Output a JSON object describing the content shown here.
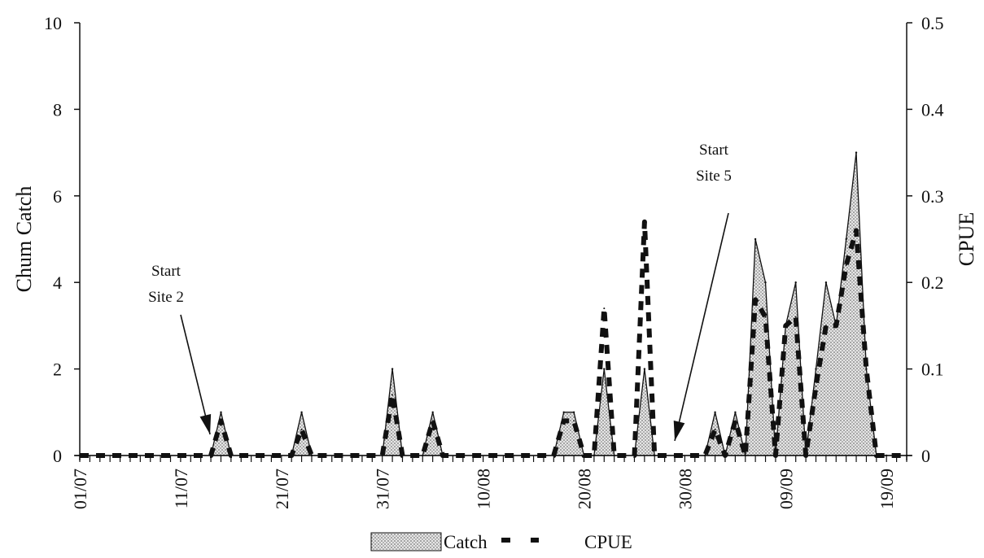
{
  "chart_data": {
    "type": "area",
    "y_left": {
      "label": "Chum Catch",
      "range": [
        0,
        10
      ],
      "ticks": [
        "0",
        "2",
        "4",
        "6",
        "8",
        "10"
      ]
    },
    "y_right": {
      "label": "CPUE",
      "range": [
        0,
        0.5
      ],
      "ticks": [
        "0",
        "0.1",
        "0.2",
        "0.3",
        "0.4",
        "0.5"
      ]
    },
    "x_axis": {
      "start": "01/07",
      "end": "21/09",
      "tick_labels": [
        "01/07",
        "11/07",
        "21/07",
        "31/07",
        "10/08",
        "20/08",
        "30/08",
        "09/09",
        "19/09"
      ]
    },
    "series": [
      {
        "name": "Catch",
        "axis": "left",
        "style": "area-stippled",
        "x": [
          "01/07",
          "14/07",
          "15/07",
          "16/07",
          "17/07",
          "22/07",
          "23/07",
          "24/07",
          "31/07",
          "01/08",
          "02/08",
          "04/08",
          "05/08",
          "06/08",
          "17/08",
          "18/08",
          "19/08",
          "20/08",
          "21/08",
          "22/08",
          "23/08",
          "25/08",
          "26/08",
          "27/08",
          "01/09",
          "02/09",
          "03/09",
          "04/09",
          "05/09",
          "06/09",
          "07/09",
          "08/09",
          "09/09",
          "10/09",
          "11/09",
          "12/09",
          "13/09",
          "14/09",
          "15/09",
          "16/09",
          "17/09",
          "18/09",
          "19/09",
          "21/09"
        ],
        "values": [
          0,
          0,
          1,
          0,
          0,
          0,
          1,
          0,
          0,
          2,
          0,
          0,
          1,
          0,
          0,
          1,
          1,
          0,
          0,
          2,
          0,
          0,
          2,
          0,
          0,
          1,
          0,
          1,
          0,
          5,
          4,
          0,
          3,
          4,
          0,
          2,
          4,
          3,
          5,
          7,
          2,
          0,
          0,
          0
        ]
      },
      {
        "name": "CPUE",
        "axis": "right",
        "style": "dashed",
        "x": [
          "01/07",
          "14/07",
          "15/07",
          "16/07",
          "17/07",
          "22/07",
          "23/07",
          "24/07",
          "31/07",
          "01/08",
          "02/08",
          "04/08",
          "05/08",
          "06/08",
          "17/08",
          "18/08",
          "19/08",
          "20/08",
          "21/08",
          "22/08",
          "23/08",
          "25/08",
          "26/08",
          "27/08",
          "01/09",
          "02/09",
          "03/09",
          "04/09",
          "05/09",
          "06/09",
          "07/09",
          "08/09",
          "09/09",
          "10/09",
          "11/09",
          "12/09",
          "13/09",
          "14/09",
          "15/09",
          "16/09",
          "17/09",
          "18/09",
          "19/09",
          "21/09"
        ],
        "values": [
          0,
          0,
          0.04,
          0,
          0,
          0,
          0.03,
          0,
          0,
          0.07,
          0,
          0,
          0.04,
          0,
          0,
          0.04,
          0.04,
          0,
          0,
          0.17,
          0,
          0,
          0.27,
          0,
          0,
          0.03,
          0,
          0.04,
          0,
          0.18,
          0.16,
          0,
          0.15,
          0.16,
          0,
          0.08,
          0.15,
          0.15,
          0.22,
          0.26,
          0.1,
          0,
          0,
          0
        ]
      }
    ],
    "annotations": [
      {
        "line1": "Start",
        "line2": "Site 2",
        "date": "14/07"
      },
      {
        "line1": "Start",
        "line2": "Site 5",
        "date": "29/08"
      }
    ],
    "legend": {
      "position": "bottom-center",
      "items": [
        "Catch",
        "CPUE"
      ]
    },
    "grid": false
  }
}
